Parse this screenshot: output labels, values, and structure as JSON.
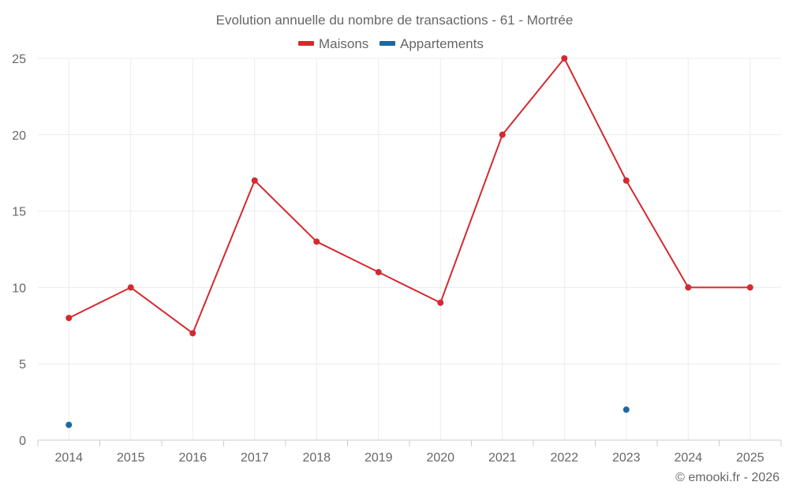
{
  "chart_data": {
    "type": "line",
    "title": "Evolution annuelle du nombre de transactions - 61 - Mortrée",
    "categories": [
      "2014",
      "2015",
      "2016",
      "2017",
      "2018",
      "2019",
      "2020",
      "2021",
      "2022",
      "2023",
      "2024",
      "2025"
    ],
    "series": [
      {
        "name": "Maisons",
        "color": "#d32a2f",
        "values": [
          8,
          10,
          7,
          17,
          13,
          11,
          9,
          20,
          25,
          17,
          10,
          10
        ],
        "style": "line"
      },
      {
        "name": "Appartements",
        "color": "#1a69a4",
        "values": [
          1,
          null,
          null,
          null,
          null,
          null,
          null,
          null,
          null,
          2,
          null,
          null
        ],
        "style": "points"
      }
    ],
    "ylim": [
      0,
      25
    ],
    "yticks": [
      0,
      5,
      10,
      15,
      20,
      25
    ],
    "xlabel": "",
    "ylabel": "",
    "grid": true,
    "legend_position": "top-center"
  },
  "credit": "© emooki.fr - 2026"
}
